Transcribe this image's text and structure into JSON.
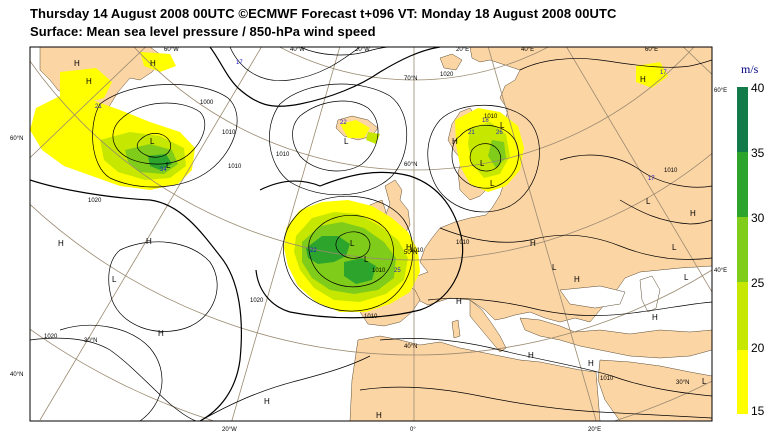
{
  "title_line1": "Thursday 14 August 2008 00UTC ©ECMWF Forecast t+096 VT: Monday 18 August 2008 00UTC",
  "title_line2": "Surface: Mean sea level pressure / 850-hPa wind speed",
  "colorbar": {
    "unit": "m/s",
    "labels": [
      "40",
      "35",
      "30",
      "25",
      "20",
      "15"
    ],
    "bands": [
      {
        "from": 15,
        "to": 20,
        "color": "#ffff00"
      },
      {
        "from": 20,
        "to": 25,
        "color": "#c6e800"
      },
      {
        "from": 25,
        "to": 30,
        "color": "#7fcc1a"
      },
      {
        "from": 30,
        "to": 35,
        "color": "#2da52d"
      },
      {
        "from": 35,
        "to": 40,
        "color": "#137a4a"
      }
    ]
  },
  "colors": {
    "land": "#fcd5a5",
    "sea": "#ffffff",
    "isobar": "#000000",
    "grid": "#9a8a70"
  },
  "grid_labels": {
    "top": [
      "60°W",
      "40°W",
      "20°W",
      "20°E",
      "40°E",
      "60°E"
    ],
    "bottom": [
      "20°W",
      "0°",
      "20°E"
    ],
    "left": [
      "60°N",
      "40°N"
    ],
    "right": [
      "60°E",
      "40°E"
    ],
    "interior": [
      "70°N",
      "60°N",
      "50°N",
      "40°N",
      "30°N",
      "30°N"
    ]
  },
  "pressure_centres": {
    "highs": [
      "H",
      "H",
      "H",
      "H",
      "H",
      "H",
      "H",
      "H",
      "H",
      "H",
      "H",
      "H",
      "H",
      "H",
      "H",
      "H",
      "H",
      "H"
    ],
    "lows": [
      "L",
      "L",
      "L",
      "L",
      "L",
      "L",
      "L",
      "L",
      "L",
      "L",
      "L",
      "L",
      "L",
      "L"
    ]
  },
  "isobar_labels": [
    "1020",
    "1020",
    "1000",
    "1010",
    "1010",
    "1020",
    "1010",
    "1010",
    "1010",
    "1010",
    "1010",
    "1010",
    "1010",
    "1010",
    "1020"
  ],
  "wind_maxima": [
    "21",
    "34",
    "22",
    "22",
    "17",
    "17",
    "18",
    "25",
    "26",
    "17",
    "21"
  ]
}
